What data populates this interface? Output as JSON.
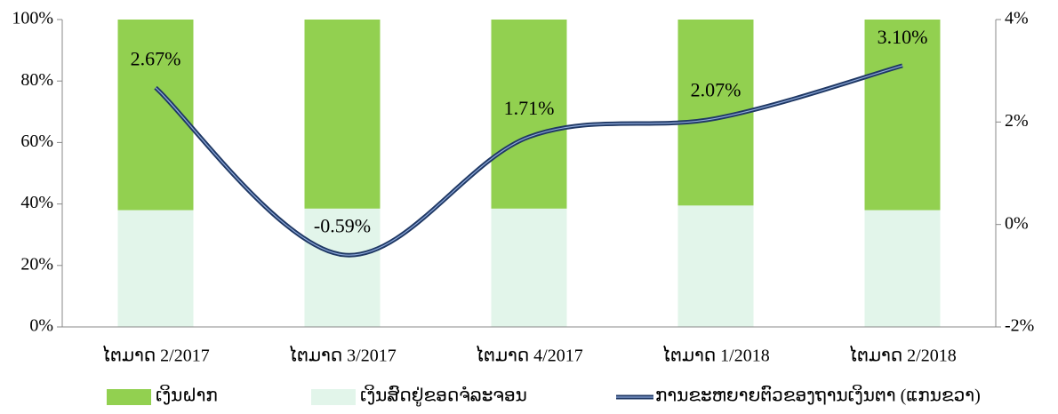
{
  "chart_data": {
    "type": "stacked_bar_line",
    "categories": [
      "ໄຕມາດ 2/2017",
      "ໄຕມາດ 3/2017",
      "ໄຕມາດ 4/2017",
      "ໄຕມາດ 1/2018",
      "ໄຕມາດ 2/2018"
    ],
    "series": [
      {
        "name": "ເງິນສົດຢູ່ຂອດຈໍລະຈອນ",
        "color": "#e2f5ea",
        "values": [
          38,
          38.5,
          38.5,
          39.5,
          38
        ]
      },
      {
        "name": "ເງິນຝາກ",
        "color": "#92d050",
        "values": [
          62,
          61.5,
          61.5,
          60.5,
          62
        ]
      },
      {
        "name": "ການຂະຫຍາຍຕົວຂອງຖານເງິນຕາ (ແກນຂວາ)",
        "color": "#1f3864",
        "axis": "y2",
        "values": [
          2.67,
          -0.59,
          1.71,
          2.07,
          3.1
        ],
        "value_labels": [
          "2.67%",
          "-0.59%",
          "1.71%",
          "2.07%",
          "3.10%"
        ]
      }
    ],
    "ylim": [
      0,
      100
    ],
    "yticks": [
      {
        "value": 0,
        "label": "0%"
      },
      {
        "value": 20,
        "label": "20%"
      },
      {
        "value": 40,
        "label": "40%"
      },
      {
        "value": 60,
        "label": "60%"
      },
      {
        "value": 80,
        "label": "80%"
      },
      {
        "value": 100,
        "label": "100%"
      }
    ],
    "y2lim": [
      -2,
      4
    ],
    "y2ticks": [
      {
        "value": -2,
        "label": "-2%"
      },
      {
        "value": 0,
        "label": "0%"
      },
      {
        "value": 2,
        "label": "2%"
      },
      {
        "value": 4,
        "label": "4%"
      }
    ],
    "legend": "bottom"
  }
}
